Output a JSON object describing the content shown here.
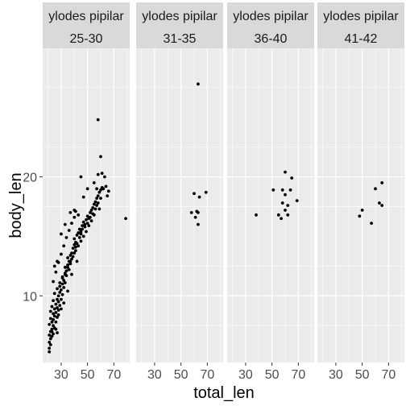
{
  "chart_data": {
    "type": "scatter",
    "xlabel": "total_len",
    "ylabel": "body_len",
    "xlim": [
      16,
      82
    ],
    "ylim": [
      4.4,
      30.8
    ],
    "x_ticks": [
      "30",
      "50",
      "70"
    ],
    "y_ticks": [
      "10",
      "20"
    ],
    "facet_top_labels": [
      "ylodes pipilar",
      "ylodes pipilar",
      "ylodes pipilar",
      "ylodes pipilar"
    ],
    "facets": [
      {
        "label": "25-30",
        "points": [
          [
            21,
            5.3
          ],
          [
            21,
            5.6
          ],
          [
            22,
            5.9
          ],
          [
            21,
            6.1
          ],
          [
            22,
            6.4
          ],
          [
            21,
            6.7
          ],
          [
            23,
            6.6
          ],
          [
            22,
            7.0
          ],
          [
            23,
            7.2
          ],
          [
            24,
            7.5
          ],
          [
            23,
            7.8
          ],
          [
            24,
            8.0
          ],
          [
            25,
            8.3
          ],
          [
            24,
            8.5
          ],
          [
            26,
            8.6
          ],
          [
            25,
            8.9
          ],
          [
            27,
            9.0
          ],
          [
            26,
            9.3
          ],
          [
            28,
            9.5
          ],
          [
            27,
            9.7
          ],
          [
            28,
            10.0
          ],
          [
            29,
            10.3
          ],
          [
            30,
            10.5
          ],
          [
            29,
            10.8
          ],
          [
            31,
            11.0
          ],
          [
            32,
            11.3
          ],
          [
            31,
            11.6
          ],
          [
            33,
            11.8
          ],
          [
            34,
            12.1
          ],
          [
            33,
            12.4
          ],
          [
            35,
            12.6
          ],
          [
            36,
            12.9
          ],
          [
            35,
            13.2
          ],
          [
            37,
            13.4
          ],
          [
            38,
            13.6
          ],
          [
            39,
            14.0
          ],
          [
            40,
            14.3
          ],
          [
            41,
            14.5
          ],
          [
            40,
            14.8
          ],
          [
            42,
            15.1
          ],
          [
            43,
            15.3
          ],
          [
            44,
            15.6
          ],
          [
            45,
            15.4
          ],
          [
            46,
            15.9
          ],
          [
            47,
            16.2
          ],
          [
            48,
            16.0
          ],
          [
            49,
            16.4
          ],
          [
            50,
            16.7
          ],
          [
            51,
            16.5
          ],
          [
            52,
            17.0
          ],
          [
            53,
            17.2
          ],
          [
            54,
            17.4
          ],
          [
            55,
            17.7
          ],
          [
            56,
            17.9
          ],
          [
            57,
            18.2
          ],
          [
            58,
            18.4
          ],
          [
            59,
            18.7
          ],
          [
            60,
            18.9
          ],
          [
            61,
            19.1
          ],
          [
            59,
            17.3
          ],
          [
            57,
            17.6
          ],
          [
            55,
            16.8
          ],
          [
            53,
            16.3
          ],
          [
            51,
            15.9
          ],
          [
            49,
            15.4
          ],
          [
            47,
            15.0
          ],
          [
            45,
            14.6
          ],
          [
            43,
            14.2
          ],
          [
            41,
            13.8
          ],
          [
            39,
            13.3
          ],
          [
            37,
            12.9
          ],
          [
            35,
            12.4
          ],
          [
            33,
            11.9
          ],
          [
            31,
            11.5
          ],
          [
            29,
            11.1
          ],
          [
            27,
            10.6
          ],
          [
            25,
            10.2
          ],
          [
            24,
            9.6
          ],
          [
            23,
            9.1
          ],
          [
            22,
            8.7
          ],
          [
            22,
            8.1
          ],
          [
            21,
            7.6
          ],
          [
            23,
            7.0
          ],
          [
            24,
            6.8
          ],
          [
            25,
            7.3
          ],
          [
            26,
            7.8
          ],
          [
            27,
            8.2
          ],
          [
            28,
            8.8
          ],
          [
            29,
            9.2
          ],
          [
            30,
            9.7
          ],
          [
            31,
            10.1
          ],
          [
            32,
            10.7
          ],
          [
            33,
            11.1
          ],
          [
            34,
            11.7
          ],
          [
            36,
            12.2
          ],
          [
            37,
            12.7
          ],
          [
            38,
            13.1
          ],
          [
            40,
            13.6
          ],
          [
            41,
            14.1
          ],
          [
            42,
            14.4
          ],
          [
            44,
            14.9
          ],
          [
            45,
            15.2
          ],
          [
            46,
            15.6
          ],
          [
            48,
            15.8
          ],
          [
            50,
            16.1
          ],
          [
            52,
            16.6
          ],
          [
            54,
            16.9
          ],
          [
            56,
            17.3
          ],
          [
            58,
            17.8
          ],
          [
            60,
            18.2
          ],
          [
            24,
            11.2
          ],
          [
            26,
            12.0
          ],
          [
            28,
            12.8
          ],
          [
            30,
            13.5
          ],
          [
            32,
            14.2
          ],
          [
            34,
            14.9
          ],
          [
            36,
            15.5
          ],
          [
            38,
            16.1
          ],
          [
            40,
            16.6
          ],
          [
            43,
            16.8
          ],
          [
            28,
            8.4
          ],
          [
            30,
            8.9
          ],
          [
            32,
            9.4
          ],
          [
            26,
            7.2
          ],
          [
            27,
            6.9
          ],
          [
            35,
            10.4
          ],
          [
            38,
            11.8
          ],
          [
            42,
            12.9
          ],
          [
            25,
            12.5
          ],
          [
            27,
            12.9
          ],
          [
            30,
            15.2
          ],
          [
            33,
            16.0
          ],
          [
            37,
            17.0
          ],
          [
            40,
            17.2
          ],
          [
            45,
            20.0
          ],
          [
            50,
            19.0
          ],
          [
            55,
            19.5
          ],
          [
            58,
            20.2
          ],
          [
            62,
            19.0
          ],
          [
            57,
            19.0
          ],
          [
            61,
            20.3
          ],
          [
            63,
            20.0
          ],
          [
            65,
            18.4
          ],
          [
            66,
            18.8
          ],
          [
            64,
            19.2
          ],
          [
            60,
            21.7
          ],
          [
            58,
            24.8
          ],
          [
            79,
            16.5
          ],
          [
            41,
            17.1
          ],
          [
            47,
            18.3
          ]
        ]
      },
      {
        "label": "31-35",
        "points": [
          [
            63,
            27.8
          ],
          [
            60,
            18.6
          ],
          [
            58,
            17.0
          ],
          [
            62,
            17.1
          ],
          [
            63,
            17.0
          ],
          [
            61,
            16.6
          ],
          [
            64,
            18.3
          ],
          [
            69,
            18.7
          ],
          [
            63,
            16.0
          ]
        ]
      },
      {
        "label": "36-40",
        "points": [
          [
            60,
            20.4
          ],
          [
            65,
            19.9
          ],
          [
            51,
            18.9
          ],
          [
            60,
            18.5
          ],
          [
            58,
            18.9
          ],
          [
            64,
            18.9
          ],
          [
            69,
            18.0
          ],
          [
            58,
            17.8
          ],
          [
            62,
            17.6
          ],
          [
            60,
            17.2
          ],
          [
            62,
            16.8
          ],
          [
            55,
            16.8
          ],
          [
            57,
            16.5
          ],
          [
            38,
            16.8
          ]
        ]
      },
      {
        "label": "41-42",
        "points": [
          [
            65,
            19.5
          ],
          [
            60,
            19.0
          ],
          [
            63,
            17.8
          ],
          [
            65,
            17.6
          ],
          [
            50,
            17.2
          ],
          [
            48,
            16.7
          ],
          [
            57,
            16.1
          ]
        ]
      }
    ]
  }
}
